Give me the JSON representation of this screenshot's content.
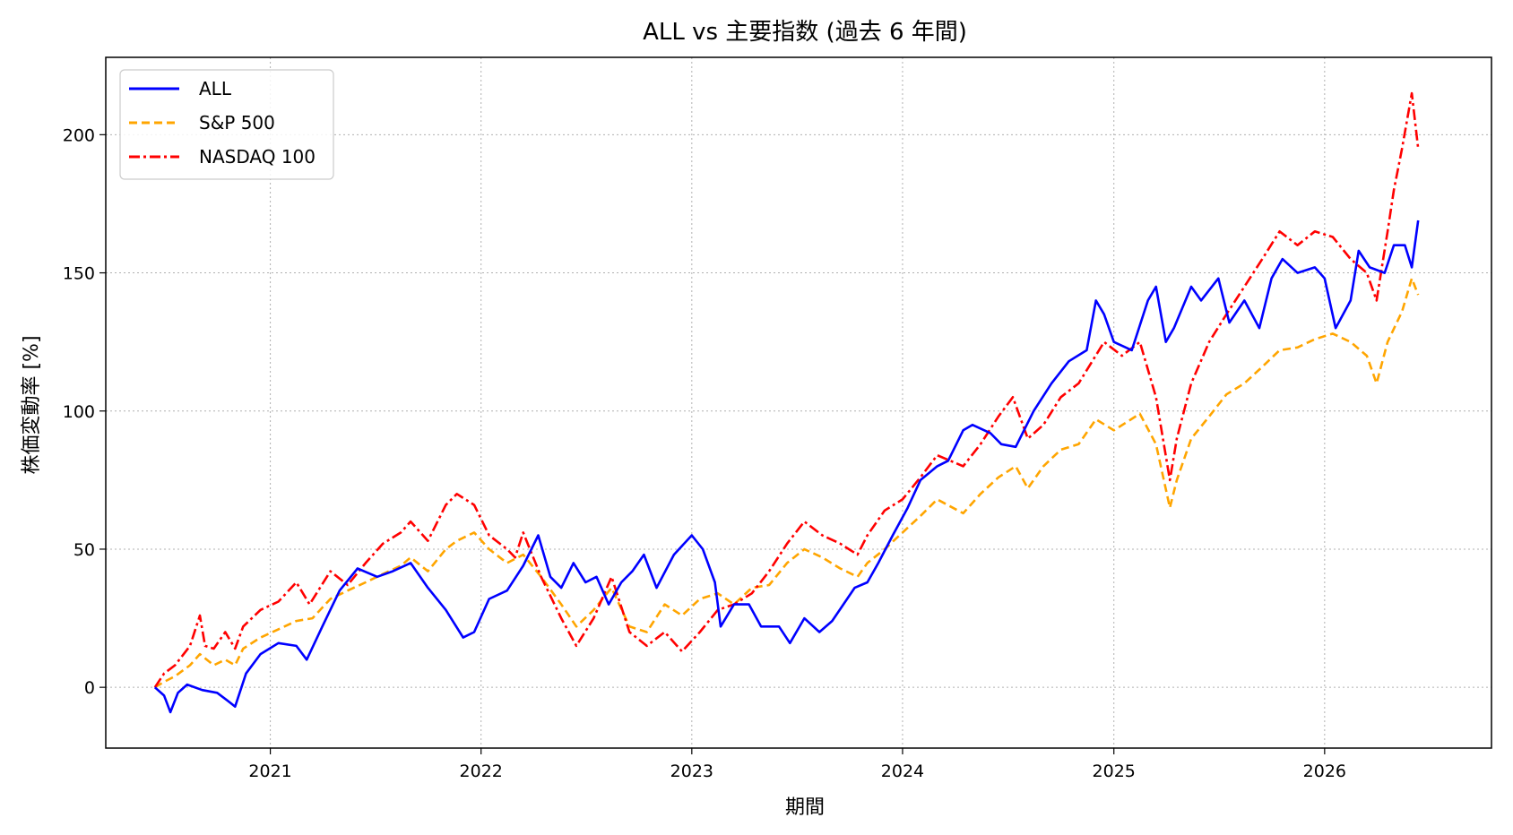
{
  "chart_data": {
    "type": "line",
    "title": "ALL vs 主要指数 (過去 6 年間)",
    "xlabel": "期間",
    "ylabel": "株価変動率 [%]",
    "xlim": [
      "2020-03-22",
      "2026-10-17"
    ],
    "ylim": [
      -22,
      228
    ],
    "x_ticks": [
      "2021",
      "2022",
      "2023",
      "2024",
      "2025",
      "2026"
    ],
    "x_tick_dates": [
      "2021-01-01",
      "2022-01-01",
      "2023-01-01",
      "2024-01-01",
      "2025-01-01",
      "2026-01-01"
    ],
    "y_ticks": [
      0,
      50,
      100,
      150,
      200
    ],
    "grid": true,
    "legend_position": "top-left",
    "series": [
      {
        "name": "ALL",
        "color": "#0000ff",
        "dash": "solid",
        "points": [
          [
            "2020-06-15",
            0
          ],
          [
            "2020-07-01",
            -3
          ],
          [
            "2020-07-12",
            -9
          ],
          [
            "2020-07-25",
            -2
          ],
          [
            "2020-08-10",
            1
          ],
          [
            "2020-09-05",
            -1
          ],
          [
            "2020-10-01",
            -2
          ],
          [
            "2020-10-20",
            -5
          ],
          [
            "2020-11-01",
            -7
          ],
          [
            "2020-11-20",
            5
          ],
          [
            "2020-12-15",
            12
          ],
          [
            "2021-01-15",
            16
          ],
          [
            "2021-02-15",
            15
          ],
          [
            "2021-03-05",
            10
          ],
          [
            "2021-04-01",
            22
          ],
          [
            "2021-05-01",
            35
          ],
          [
            "2021-06-01",
            43
          ],
          [
            "2021-07-05",
            40
          ],
          [
            "2021-08-01",
            42
          ],
          [
            "2021-09-01",
            45
          ],
          [
            "2021-10-01",
            36
          ],
          [
            "2021-11-01",
            28
          ],
          [
            "2021-12-01",
            18
          ],
          [
            "2021-12-20",
            20
          ],
          [
            "2022-01-15",
            32
          ],
          [
            "2022-02-15",
            35
          ],
          [
            "2022-03-15",
            44
          ],
          [
            "2022-04-10",
            55
          ],
          [
            "2022-05-01",
            40
          ],
          [
            "2022-05-20",
            36
          ],
          [
            "2022-06-10",
            45
          ],
          [
            "2022-07-01",
            38
          ],
          [
            "2022-07-20",
            40
          ],
          [
            "2022-08-10",
            30
          ],
          [
            "2022-09-01",
            38
          ],
          [
            "2022-09-20",
            42
          ],
          [
            "2022-10-10",
            48
          ],
          [
            "2022-11-01",
            36
          ],
          [
            "2022-12-01",
            48
          ],
          [
            "2023-01-01",
            55
          ],
          [
            "2023-01-20",
            50
          ],
          [
            "2023-02-10",
            38
          ],
          [
            "2023-02-20",
            22
          ],
          [
            "2023-03-15",
            30
          ],
          [
            "2023-04-10",
            30
          ],
          [
            "2023-05-01",
            22
          ],
          [
            "2023-06-01",
            22
          ],
          [
            "2023-06-20",
            16
          ],
          [
            "2023-07-15",
            25
          ],
          [
            "2023-08-10",
            20
          ],
          [
            "2023-09-01",
            24
          ],
          [
            "2023-10-10",
            36
          ],
          [
            "2023-11-01",
            38
          ],
          [
            "2023-11-20",
            45
          ],
          [
            "2023-12-15",
            55
          ],
          [
            "2024-01-10",
            65
          ],
          [
            "2024-02-01",
            75
          ],
          [
            "2024-03-01",
            80
          ],
          [
            "2024-03-20",
            82
          ],
          [
            "2024-04-15",
            93
          ],
          [
            "2024-05-01",
            95
          ],
          [
            "2024-06-01",
            92
          ],
          [
            "2024-06-20",
            88
          ],
          [
            "2024-07-15",
            87
          ],
          [
            "2024-08-15",
            100
          ],
          [
            "2024-09-15",
            110
          ],
          [
            "2024-10-15",
            118
          ],
          [
            "2024-11-15",
            122
          ],
          [
            "2024-12-01",
            140
          ],
          [
            "2024-12-15",
            135
          ],
          [
            "2025-01-01",
            125
          ],
          [
            "2025-02-01",
            122
          ],
          [
            "2025-03-01",
            140
          ],
          [
            "2025-03-15",
            145
          ],
          [
            "2025-04-01",
            125
          ],
          [
            "2025-04-15",
            130
          ],
          [
            "2025-05-15",
            145
          ],
          [
            "2025-06-01",
            140
          ],
          [
            "2025-07-01",
            148
          ],
          [
            "2025-07-20",
            132
          ],
          [
            "2025-08-15",
            140
          ],
          [
            "2025-09-10",
            130
          ],
          [
            "2025-10-01",
            148
          ],
          [
            "2025-10-20",
            155
          ],
          [
            "2025-11-15",
            150
          ],
          [
            "2025-12-15",
            152
          ],
          [
            "2026-01-01",
            148
          ],
          [
            "2026-01-20",
            130
          ],
          [
            "2026-02-15",
            140
          ],
          [
            "2026-03-01",
            158
          ],
          [
            "2026-03-20",
            152
          ],
          [
            "2026-04-15",
            150
          ],
          [
            "2026-05-01",
            160
          ],
          [
            "2026-05-20",
            160
          ],
          [
            "2026-06-01",
            152
          ],
          [
            "2026-06-12",
            169
          ]
        ]
      },
      {
        "name": "S&P 500",
        "color": "#ffa500",
        "dash": "dashed",
        "points": [
          [
            "2020-06-15",
            0
          ],
          [
            "2020-07-01",
            2
          ],
          [
            "2020-07-20",
            4
          ],
          [
            "2020-08-15",
            8
          ],
          [
            "2020-09-01",
            12
          ],
          [
            "2020-09-25",
            8
          ],
          [
            "2020-10-15",
            10
          ],
          [
            "2020-11-01",
            8
          ],
          [
            "2020-11-15",
            14
          ],
          [
            "2020-12-15",
            18
          ],
          [
            "2021-01-15",
            21
          ],
          [
            "2021-02-15",
            24
          ],
          [
            "2021-03-15",
            25
          ],
          [
            "2021-04-15",
            32
          ],
          [
            "2021-05-15",
            35
          ],
          [
            "2021-06-15",
            38
          ],
          [
            "2021-07-15",
            41
          ],
          [
            "2021-08-15",
            44
          ],
          [
            "2021-09-01",
            47
          ],
          [
            "2021-10-01",
            42
          ],
          [
            "2021-11-01",
            50
          ],
          [
            "2021-11-20",
            53
          ],
          [
            "2021-12-20",
            56
          ],
          [
            "2022-01-15",
            50
          ],
          [
            "2022-02-15",
            45
          ],
          [
            "2022-03-15",
            48
          ],
          [
            "2022-04-15",
            40
          ],
          [
            "2022-05-20",
            30
          ],
          [
            "2022-06-15",
            22
          ],
          [
            "2022-07-15",
            28
          ],
          [
            "2022-08-15",
            36
          ],
          [
            "2022-09-15",
            22
          ],
          [
            "2022-10-15",
            20
          ],
          [
            "2022-11-15",
            30
          ],
          [
            "2022-12-15",
            26
          ],
          [
            "2023-01-15",
            32
          ],
          [
            "2023-02-15",
            34
          ],
          [
            "2023-03-15",
            30
          ],
          [
            "2023-04-15",
            36
          ],
          [
            "2023-05-15",
            37
          ],
          [
            "2023-06-15",
            45
          ],
          [
            "2023-07-15",
            50
          ],
          [
            "2023-08-15",
            47
          ],
          [
            "2023-09-15",
            43
          ],
          [
            "2023-10-15",
            40
          ],
          [
            "2023-11-01",
            45
          ],
          [
            "2023-12-01",
            50
          ],
          [
            "2024-01-01",
            56
          ],
          [
            "2024-02-01",
            62
          ],
          [
            "2024-03-01",
            68
          ],
          [
            "2024-04-15",
            63
          ],
          [
            "2024-05-15",
            70
          ],
          [
            "2024-06-15",
            76
          ],
          [
            "2024-07-15",
            80
          ],
          [
            "2024-08-05",
            72
          ],
          [
            "2024-09-01",
            80
          ],
          [
            "2024-10-01",
            86
          ],
          [
            "2024-11-01",
            88
          ],
          [
            "2024-12-01",
            97
          ],
          [
            "2025-01-01",
            93
          ],
          [
            "2025-02-15",
            99
          ],
          [
            "2025-03-15",
            88
          ],
          [
            "2025-04-08",
            65
          ],
          [
            "2025-04-20",
            75
          ],
          [
            "2025-05-15",
            90
          ],
          [
            "2025-06-15",
            98
          ],
          [
            "2025-07-15",
            106
          ],
          [
            "2025-08-15",
            110
          ],
          [
            "2025-09-15",
            116
          ],
          [
            "2025-10-15",
            122
          ],
          [
            "2025-11-15",
            123
          ],
          [
            "2025-12-15",
            126
          ],
          [
            "2026-01-15",
            128
          ],
          [
            "2026-02-15",
            125
          ],
          [
            "2026-03-15",
            120
          ],
          [
            "2026-04-01",
            110
          ],
          [
            "2026-04-20",
            125
          ],
          [
            "2026-05-15",
            136
          ],
          [
            "2026-06-01",
            148
          ],
          [
            "2026-06-12",
            142
          ]
        ]
      },
      {
        "name": "NASDAQ 100",
        "color": "#ff0000",
        "dash": "dashdot",
        "points": [
          [
            "2020-06-15",
            0
          ],
          [
            "2020-07-01",
            5
          ],
          [
            "2020-07-20",
            8
          ],
          [
            "2020-08-15",
            15
          ],
          [
            "2020-09-01",
            26
          ],
          [
            "2020-09-10",
            15
          ],
          [
            "2020-09-25",
            14
          ],
          [
            "2020-10-15",
            20
          ],
          [
            "2020-11-01",
            14
          ],
          [
            "2020-11-15",
            22
          ],
          [
            "2020-12-15",
            28
          ],
          [
            "2021-01-15",
            31
          ],
          [
            "2021-02-15",
            38
          ],
          [
            "2021-03-10",
            30
          ],
          [
            "2021-04-15",
            42
          ],
          [
            "2021-05-15",
            37
          ],
          [
            "2021-06-15",
            45
          ],
          [
            "2021-07-15",
            52
          ],
          [
            "2021-08-15",
            56
          ],
          [
            "2021-09-01",
            60
          ],
          [
            "2021-10-01",
            53
          ],
          [
            "2021-11-01",
            66
          ],
          [
            "2021-11-20",
            70
          ],
          [
            "2021-12-20",
            66
          ],
          [
            "2022-01-15",
            55
          ],
          [
            "2022-02-15",
            50
          ],
          [
            "2022-03-01",
            47
          ],
          [
            "2022-03-15",
            56
          ],
          [
            "2022-04-15",
            40
          ],
          [
            "2022-05-20",
            25
          ],
          [
            "2022-06-15",
            15
          ],
          [
            "2022-07-15",
            25
          ],
          [
            "2022-08-15",
            40
          ],
          [
            "2022-09-15",
            20
          ],
          [
            "2022-10-15",
            15
          ],
          [
            "2022-11-15",
            20
          ],
          [
            "2022-12-15",
            13
          ],
          [
            "2023-01-15",
            20
          ],
          [
            "2023-02-15",
            28
          ],
          [
            "2023-03-15",
            30
          ],
          [
            "2023-04-15",
            34
          ],
          [
            "2023-05-15",
            42
          ],
          [
            "2023-06-15",
            52
          ],
          [
            "2023-07-15",
            60
          ],
          [
            "2023-08-15",
            55
          ],
          [
            "2023-09-15",
            52
          ],
          [
            "2023-10-15",
            48
          ],
          [
            "2023-11-01",
            55
          ],
          [
            "2023-12-01",
            64
          ],
          [
            "2024-01-01",
            68
          ],
          [
            "2024-02-01",
            76
          ],
          [
            "2024-03-01",
            84
          ],
          [
            "2024-04-15",
            80
          ],
          [
            "2024-05-15",
            88
          ],
          [
            "2024-06-15",
            98
          ],
          [
            "2024-07-10",
            105
          ],
          [
            "2024-08-05",
            90
          ],
          [
            "2024-09-01",
            95
          ],
          [
            "2024-10-01",
            105
          ],
          [
            "2024-11-01",
            110
          ],
          [
            "2024-12-15",
            125
          ],
          [
            "2025-01-15",
            120
          ],
          [
            "2025-02-15",
            125
          ],
          [
            "2025-03-15",
            105
          ],
          [
            "2025-04-08",
            75
          ],
          [
            "2025-04-20",
            90
          ],
          [
            "2025-05-15",
            110
          ],
          [
            "2025-06-15",
            125
          ],
          [
            "2025-07-15",
            135
          ],
          [
            "2025-08-15",
            145
          ],
          [
            "2025-09-15",
            155
          ],
          [
            "2025-10-15",
            165
          ],
          [
            "2025-11-15",
            160
          ],
          [
            "2025-12-15",
            165
          ],
          [
            "2026-01-15",
            163
          ],
          [
            "2026-02-15",
            155
          ],
          [
            "2026-03-15",
            150
          ],
          [
            "2026-04-01",
            140
          ],
          [
            "2026-04-20",
            165
          ],
          [
            "2026-05-01",
            180
          ],
          [
            "2026-05-15",
            195
          ],
          [
            "2026-06-01",
            215
          ],
          [
            "2026-06-12",
            195
          ]
        ]
      }
    ]
  }
}
